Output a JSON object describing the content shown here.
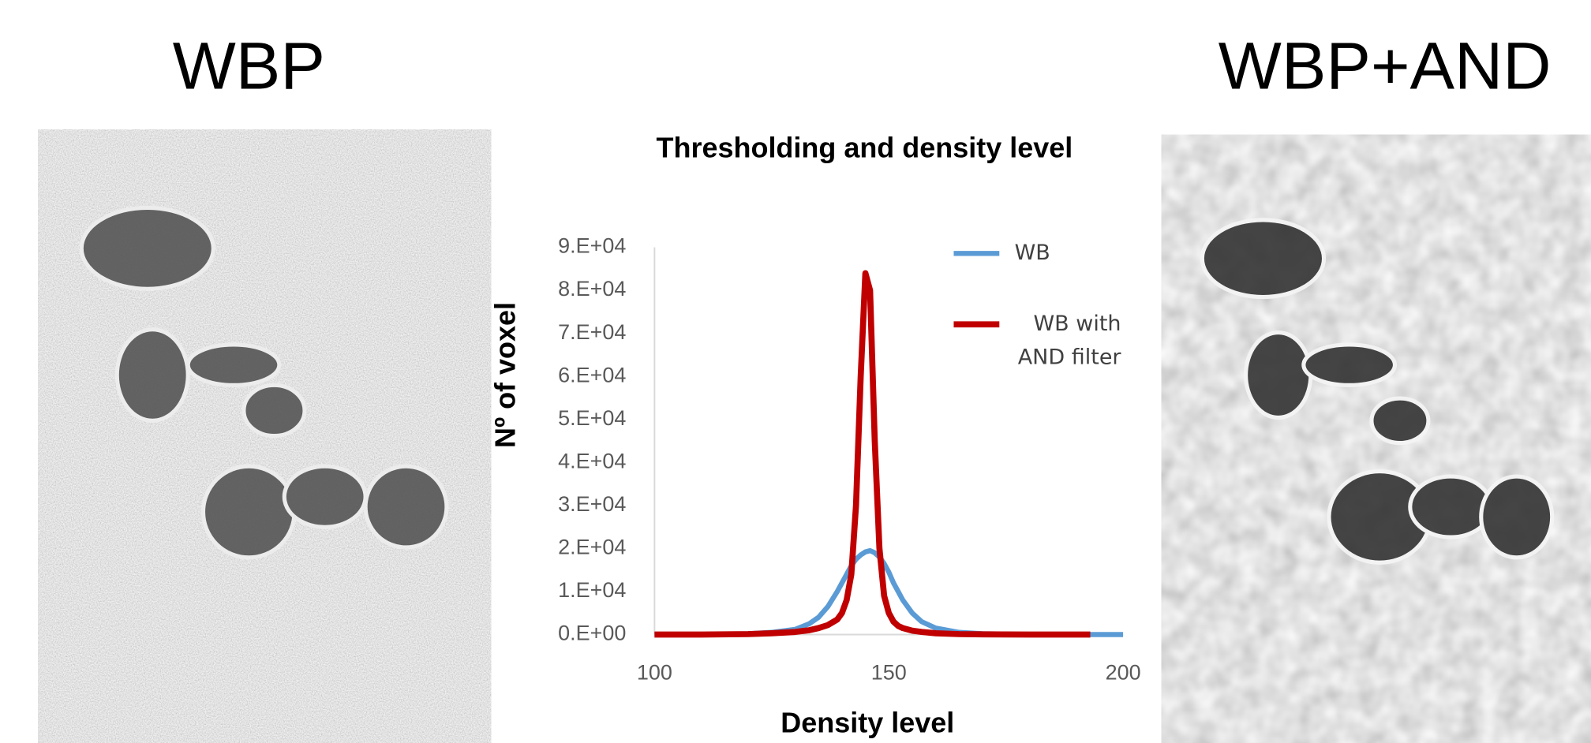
{
  "panels": [
    {
      "label": "WBP"
    },
    {
      "label": "WBP+AND"
    }
  ],
  "chart_data": {
    "type": "line",
    "title": "Thresholding and density level",
    "x_label": "Density level",
    "y_label": "Nº of voxel",
    "x": [
      100,
      110,
      120,
      125,
      130,
      133,
      135,
      137,
      139,
      140,
      141,
      142,
      143,
      144,
      145,
      146,
      147,
      148,
      149,
      150,
      151,
      152,
      153,
      155,
      157,
      160,
      165,
      170,
      180,
      190,
      193,
      200
    ],
    "series": [
      {
        "name": "WB",
        "color": "#5b9bd5",
        "values": [
          0,
          0,
          200,
          500,
          1200,
          2500,
          4000,
          6500,
          10000,
          12000,
          14000,
          16000,
          17500,
          18500,
          19200,
          19500,
          19000,
          18000,
          16500,
          14500,
          12000,
          10000,
          8000,
          5000,
          3000,
          1500,
          500,
          200,
          0,
          0,
          0,
          0
        ]
      },
      {
        "name": "WB with AND filter",
        "color": "#c00000",
        "values": [
          0,
          0,
          100,
          300,
          600,
          1000,
          1500,
          2200,
          3500,
          5000,
          8000,
          14000,
          30000,
          60000,
          84000,
          80000,
          45000,
          20000,
          9000,
          5000,
          3000,
          2000,
          1500,
          900,
          600,
          300,
          100,
          50,
          0,
          0,
          0,
          null
        ]
      }
    ],
    "xlim": [
      100,
      200
    ],
    "xticks": [
      100,
      150,
      200
    ],
    "ylim": [
      0,
      90000
    ],
    "yticks": [
      {
        "value": 0,
        "label": "0.E+00"
      },
      {
        "value": 10000,
        "label": "1.E+04"
      },
      {
        "value": 20000,
        "label": "2.E+04"
      },
      {
        "value": 30000,
        "label": "3.E+04"
      },
      {
        "value": 40000,
        "label": "4.E+04"
      },
      {
        "value": 50000,
        "label": "5.E+04"
      },
      {
        "value": 60000,
        "label": "6.E+04"
      },
      {
        "value": 70000,
        "label": "7.E+04"
      },
      {
        "value": 80000,
        "label": "8.E+04"
      },
      {
        "value": 90000,
        "label": "9.E+04"
      }
    ],
    "grid": false
  }
}
